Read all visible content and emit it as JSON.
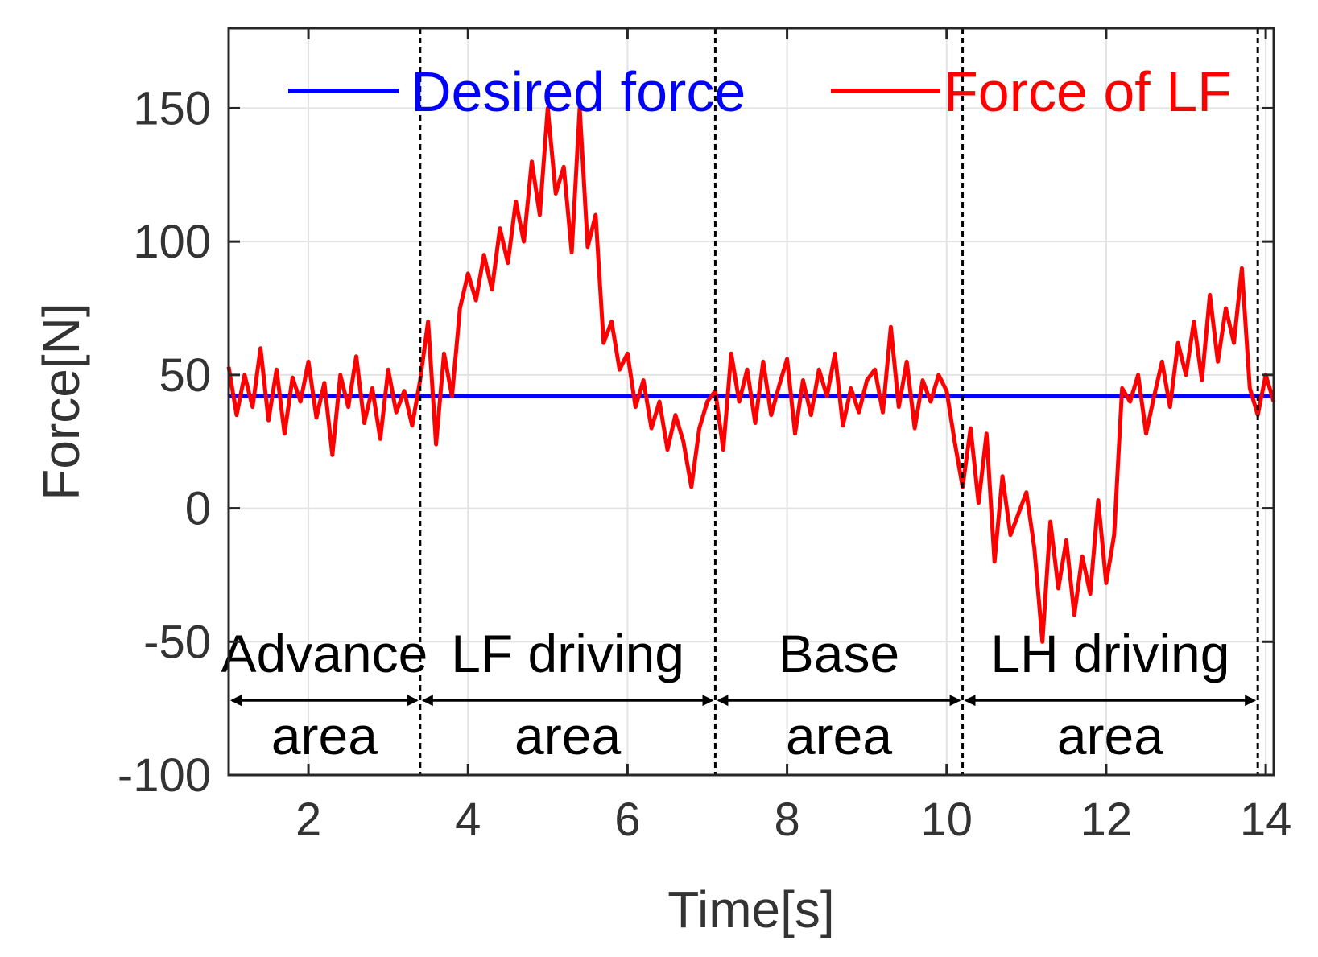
{
  "chart_data": {
    "type": "line",
    "title": "",
    "xlabel": "Time[s]",
    "ylabel": "Force[N]",
    "xlim": [
      1,
      14.1
    ],
    "ylim": [
      -100,
      180
    ],
    "xticks": [
      2,
      4,
      6,
      8,
      10,
      12,
      14
    ],
    "yticks": [
      -100,
      -50,
      0,
      50,
      100,
      150
    ],
    "grid": true,
    "legend": {
      "placement": "top",
      "entries": [
        "Desired force",
        "Force of LF"
      ]
    },
    "colors": {
      "desired": "#0000ff",
      "measured": "#ff0000",
      "dividers": "#000000"
    },
    "series": [
      {
        "name": "Desired force",
        "color": "#0000ff",
        "x": [
          1,
          14.1
        ],
        "y": [
          42,
          42
        ]
      },
      {
        "name": "Force of LF",
        "color": "#ff0000",
        "x": [
          1.0,
          1.1,
          1.2,
          1.3,
          1.4,
          1.5,
          1.6,
          1.7,
          1.8,
          1.9,
          2.0,
          2.1,
          2.2,
          2.3,
          2.4,
          2.5,
          2.6,
          2.7,
          2.8,
          2.9,
          3.0,
          3.1,
          3.2,
          3.3,
          3.4,
          3.5,
          3.6,
          3.7,
          3.8,
          3.9,
          4.0,
          4.1,
          4.2,
          4.3,
          4.4,
          4.5,
          4.6,
          4.7,
          4.8,
          4.9,
          5.0,
          5.1,
          5.2,
          5.3,
          5.4,
          5.5,
          5.6,
          5.7,
          5.8,
          5.9,
          6.0,
          6.1,
          6.2,
          6.3,
          6.4,
          6.5,
          6.6,
          6.7,
          6.8,
          6.9,
          7.0,
          7.1,
          7.2,
          7.3,
          7.4,
          7.5,
          7.6,
          7.7,
          7.8,
          7.9,
          8.0,
          8.1,
          8.2,
          8.3,
          8.4,
          8.5,
          8.6,
          8.7,
          8.8,
          8.9,
          9.0,
          9.1,
          9.2,
          9.3,
          9.4,
          9.5,
          9.6,
          9.7,
          9.8,
          9.9,
          10.0,
          10.1,
          10.2,
          10.3,
          10.4,
          10.5,
          10.6,
          10.7,
          10.8,
          10.9,
          11.0,
          11.1,
          11.2,
          11.3,
          11.4,
          11.5,
          11.6,
          11.7,
          11.8,
          11.9,
          12.0,
          12.1,
          12.2,
          12.3,
          12.4,
          12.5,
          12.6,
          12.7,
          12.8,
          12.9,
          13.0,
          13.1,
          13.2,
          13.3,
          13.4,
          13.5,
          13.6,
          13.7,
          13.8,
          13.9,
          14.0,
          14.1
        ],
        "y": [
          53,
          35,
          50,
          38,
          60,
          33,
          52,
          28,
          49,
          40,
          55,
          34,
          47,
          20,
          50,
          38,
          57,
          32,
          45,
          26,
          52,
          36,
          44,
          31,
          48,
          70,
          24,
          58,
          42,
          75,
          88,
          78,
          95,
          82,
          105,
          92,
          115,
          100,
          130,
          110,
          150,
          118,
          128,
          96,
          150,
          98,
          110,
          62,
          70,
          52,
          58,
          38,
          48,
          30,
          40,
          22,
          35,
          25,
          8,
          30,
          40,
          44,
          22,
          58,
          40,
          52,
          32,
          55,
          35,
          46,
          56,
          28,
          48,
          35,
          52,
          42,
          58,
          31,
          45,
          36,
          48,
          52,
          36,
          68,
          38,
          55,
          30,
          48,
          40,
          50,
          44,
          25,
          8,
          30,
          2,
          28,
          -20,
          12,
          -10,
          -2,
          6,
          -15,
          -50,
          -5,
          -30,
          -12,
          -40,
          -18,
          -32,
          3,
          -28,
          -10,
          45,
          40,
          50,
          28,
          42,
          55,
          38,
          62,
          50,
          70,
          48,
          80,
          55,
          75,
          62,
          90,
          45,
          35,
          50,
          40
        ],
        "y_note_ignore": null
      }
    ],
    "dividers_x": [
      3.4,
      7.1,
      10.2,
      13.9
    ],
    "regions": [
      {
        "line1": "Advance",
        "line2": "area",
        "from": 1.0,
        "to": 3.4
      },
      {
        "line1": "LF driving",
        "line2": "area",
        "from": 3.4,
        "to": 7.1
      },
      {
        "line1": "Base",
        "line2": "area",
        "from": 7.1,
        "to": 10.2
      },
      {
        "line1": "LH driving",
        "line2": "area",
        "from": 10.2,
        "to": 13.9
      }
    ],
    "region_arrow_y": -72
  }
}
